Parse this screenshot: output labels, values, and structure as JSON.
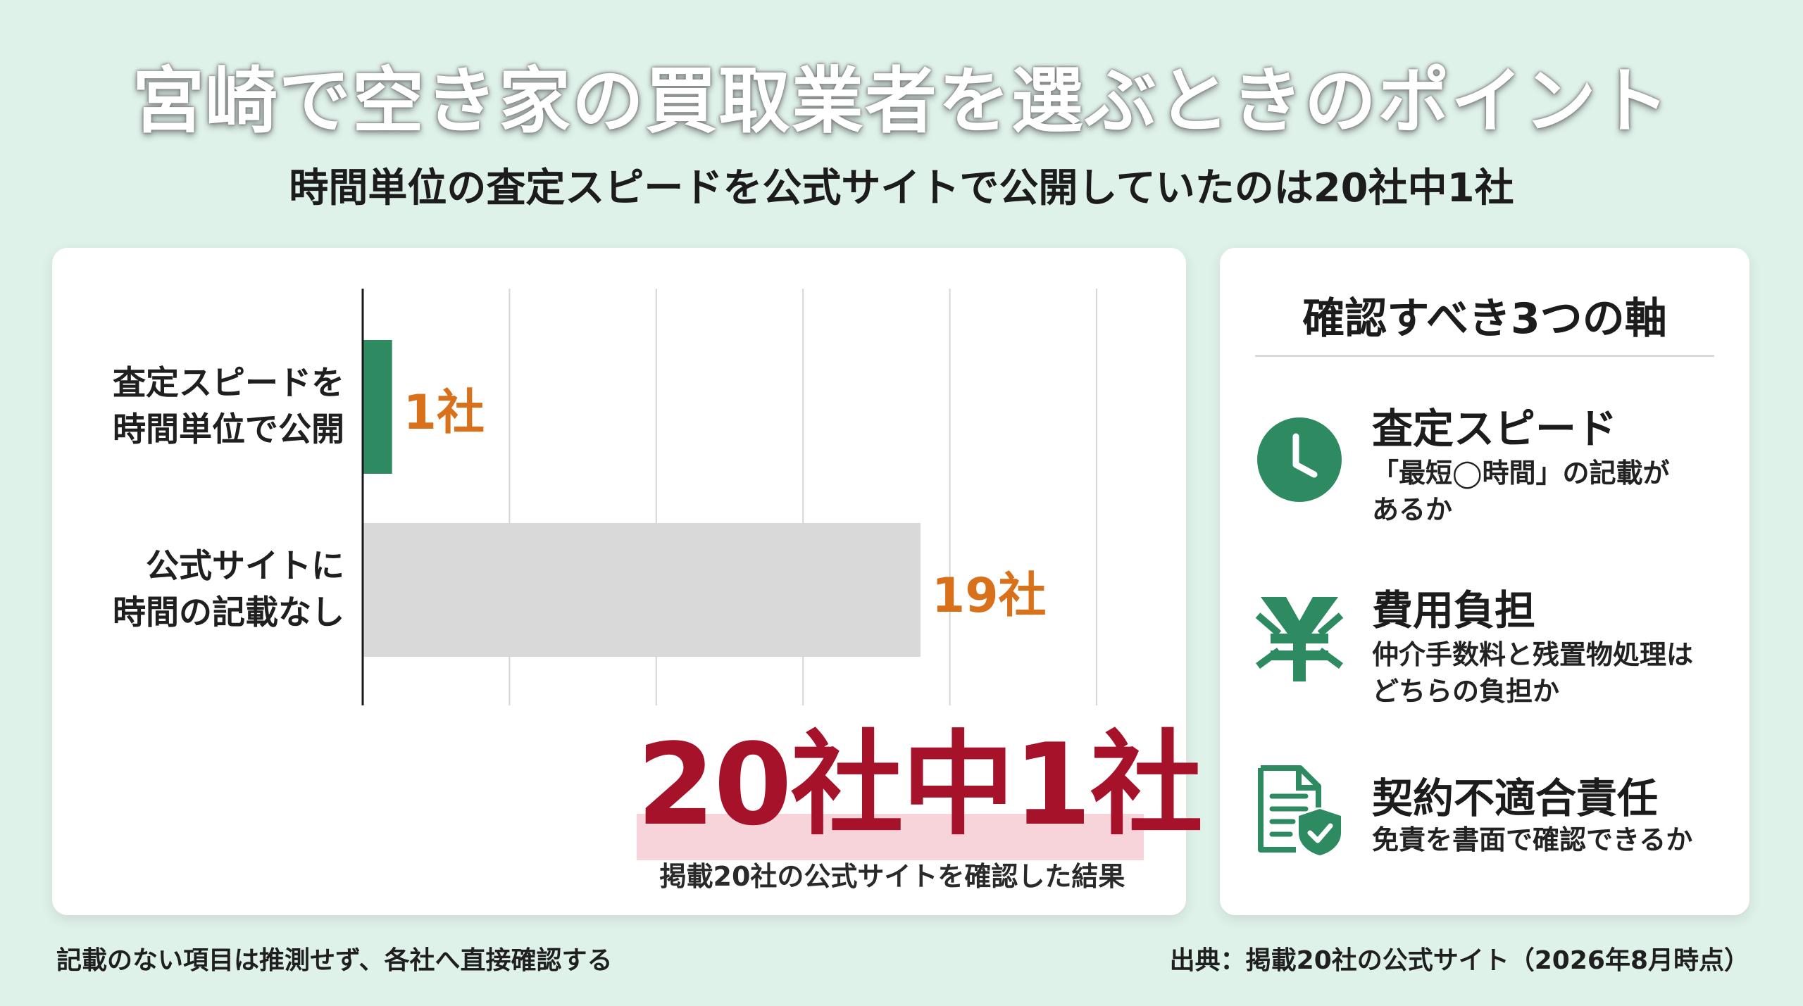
{
  "title": "宮崎で空き家の買取業者を選ぶときのポイント",
  "subtitle": "時間単位の査定スピードを公式サイトで公開していたのは20社中1社",
  "colors": {
    "background": "#dff2ea",
    "bar_primary": "#2e8b61",
    "bar_secondary": "#d9d9d9",
    "value_label": "#d9711b",
    "highlight": "#a7122b",
    "highlight_band": "#f6d4d9",
    "icon": "#2e8b61"
  },
  "chart_data": {
    "type": "bar",
    "orientation": "horizontal",
    "categories": [
      "査定スピードを\n時間単位で公開",
      "公式サイトに\n時間の記載なし"
    ],
    "values": [
      1,
      19
    ],
    "value_labels": [
      "1社",
      "19社"
    ],
    "xlim": [
      0,
      25
    ],
    "grid": true
  },
  "highlight": {
    "big_text": "20社中1社",
    "caption": "掲載20社の公式サイトを確認した結果"
  },
  "panel": {
    "title": "確認すべき3つの軸",
    "items": [
      {
        "icon": "clock-icon",
        "name": "査定スピード",
        "desc": "「最短◯時間」の記載が\nあるか"
      },
      {
        "icon": "yen-icon",
        "name": "費用負担",
        "desc": "仲介手数料と残置物処理は\nどちらの負担か"
      },
      {
        "icon": "document-shield-icon",
        "name": "契約不適合責任",
        "desc": "免責を書面で確認できるか"
      }
    ]
  },
  "footer": {
    "note": "記載のない項目は推測せず、各社へ直接確認する",
    "source": "出典：掲載20社の公式サイト（2026年8月時点）"
  }
}
